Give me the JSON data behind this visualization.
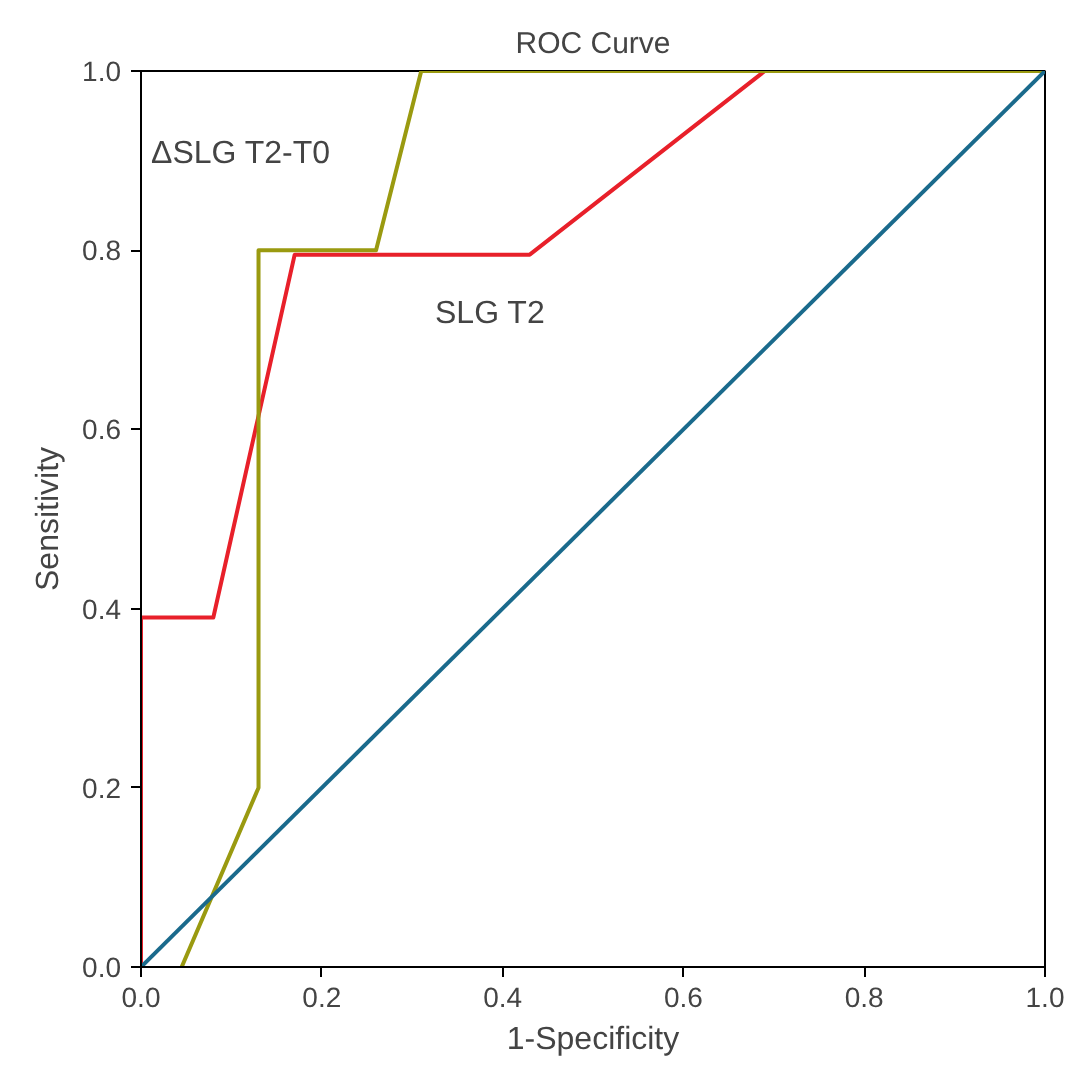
{
  "chart_data": {
    "type": "line",
    "title": "ROC Curve",
    "xlabel": "1-Specificity",
    "ylabel": "Sensitivity",
    "xlim": [
      0,
      1
    ],
    "ylim": [
      0,
      1
    ],
    "xticks": [
      {
        "value": 0,
        "label": "0.0"
      },
      0.2,
      0.4,
      0.6,
      0.8,
      {
        "value": 1,
        "label": "1.0"
      }
    ],
    "yticks": [
      {
        "value": 0,
        "label": "0.0"
      },
      0.2,
      0.4,
      0.6,
      0.8,
      {
        "value": 1,
        "label": "1.0"
      }
    ],
    "grid": false,
    "marker": "none",
    "line_style": "solid",
    "series": [
      {
        "color": "#e8202a",
        "x": [
          0,
          0,
          0.08,
          0.17,
          0.43,
          0.69,
          1
        ],
        "values": [
          0,
          0.39,
          0.39,
          0.795,
          0.795,
          1,
          1
        ]
      },
      {
        "color": "#9a9a10",
        "x": [
          0.045,
          0.13,
          0.13,
          0.26,
          0.31,
          1
        ],
        "values": [
          0,
          0.2,
          0.8,
          0.8,
          1,
          1
        ]
      },
      {
        "color": "#1a6a8c",
        "x": [
          0,
          1
        ],
        "values": [
          0,
          1
        ]
      }
    ],
    "annotations": [
      "ΔSLG T2-T0",
      "SLG T2"
    ]
  }
}
